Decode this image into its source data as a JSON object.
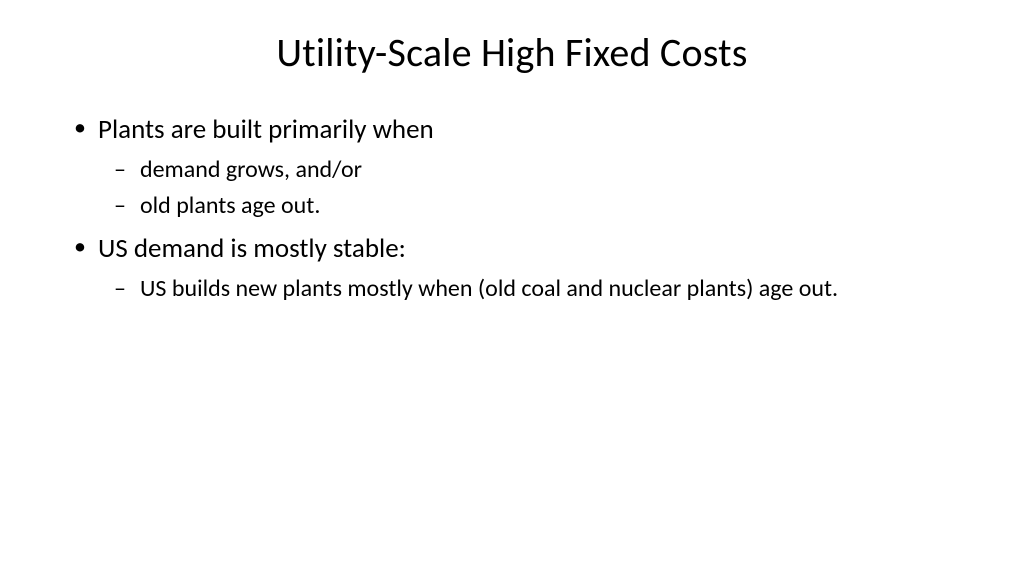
{
  "slide": {
    "title": "Utility-Scale High Fixed Costs",
    "bullets": [
      {
        "text": "Plants are built primarily when",
        "sub": [
          "demand grows, and/or",
          "old plants age out."
        ]
      },
      {
        "text": "US demand is mostly stable:",
        "sub": [
          "US builds new plants mostly when (old coal and nuclear plants) age out."
        ]
      }
    ]
  },
  "style": {
    "background_color": "#ffffff",
    "text_color": "#000000",
    "title_fontsize": 40,
    "level1_fontsize": 27,
    "level2_fontsize": 24,
    "font_family": "Calibri",
    "level1_marker": "•",
    "level2_marker": "–"
  }
}
